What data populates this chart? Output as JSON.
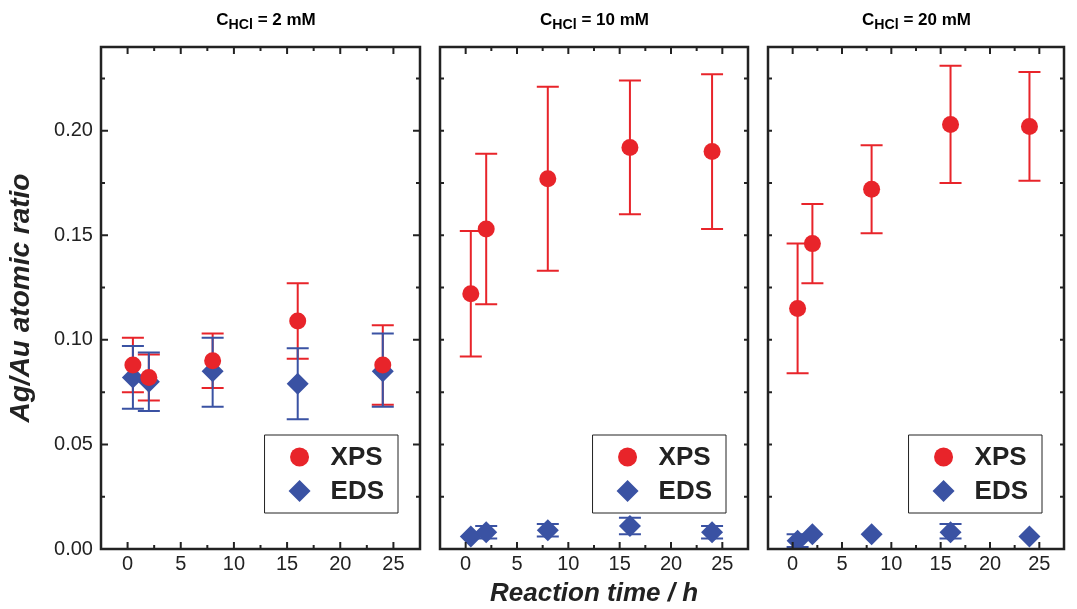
{
  "chart_data": [
    {
      "type": "scatter",
      "title": "C$_{HCl}$ = 2 mM",
      "ylabel": "Ag/Au atomic ratio",
      "xlim": [
        -2.5,
        27.5
      ],
      "ylim": [
        0,
        0.24
      ],
      "xticks": [
        0,
        {
          "value": 2.5,
          "label": null
        },
        5,
        {
          "value": 7.5,
          "label": null
        },
        10,
        {
          "value": 12.5,
          "label": null
        },
        15,
        {
          "value": 17.5,
          "label": null
        },
        20,
        {
          "value": 22.5,
          "label": null
        },
        25
      ],
      "yticks": [
        {
          "value": 0,
          "label": "0.00"
        },
        {
          "value": 0.025,
          "label": null
        },
        {
          "value": 0.05,
          "label": "0.05"
        },
        {
          "value": 0.075,
          "label": null
        },
        {
          "value": 0.1,
          "label": "0.10"
        },
        {
          "value": 0.125,
          "label": null
        },
        {
          "value": 0.15,
          "label": "0.15"
        },
        {
          "value": 0.175,
          "label": null
        },
        {
          "value": 0.2,
          "label": "0.20"
        },
        {
          "value": 0.225,
          "label": null
        }
      ],
      "grid": false,
      "legend": "bottom right",
      "series": [
        {
          "name": "XPS",
          "color": "#e8242a",
          "marker": "circle",
          "x": [
            0.5,
            2,
            8,
            16,
            24
          ],
          "values": [
            0.088,
            0.082,
            0.09,
            0.109,
            0.088
          ],
          "errors": [
            [
              0.075,
              0.101
            ],
            [
              0.071,
              0.093
            ],
            [
              0.077,
              0.103
            ],
            [
              0.091,
              0.127
            ],
            [
              0.069,
              0.107
            ]
          ]
        },
        {
          "name": "EDS",
          "color": "#3a52a3",
          "marker": "diamond",
          "x": [
            0.5,
            2,
            8,
            16,
            24
          ],
          "values": [
            0.082,
            0.08,
            0.085,
            0.079,
            0.085
          ],
          "errors": [
            [
              0.067,
              0.097
            ],
            [
              0.066,
              0.094
            ],
            [
              0.068,
              0.101
            ],
            [
              0.062,
              0.096
            ],
            [
              0.068,
              0.103
            ]
          ]
        }
      ]
    },
    {
      "type": "scatter",
      "title": "C$_{HCl}$ = 10 mM",
      "xlabel": "Reaction time / h",
      "xlim": [
        -2.5,
        27.5
      ],
      "ylim": [
        0,
        0.24
      ],
      "tick_labels": "x",
      "xticks": [
        0,
        {
          "value": 2.5,
          "label": null
        },
        5,
        {
          "value": 7.5,
          "label": null
        },
        10,
        {
          "value": 12.5,
          "label": null
        },
        15,
        {
          "value": 17.5,
          "label": null
        },
        20,
        {
          "value": 22.5,
          "label": null
        },
        25
      ],
      "yticks": [
        {
          "value": 0,
          "label": null
        },
        {
          "value": 0.025,
          "label": null
        },
        {
          "value": 0.05,
          "label": null
        },
        {
          "value": 0.075,
          "label": null
        },
        {
          "value": 0.1,
          "label": null
        },
        {
          "value": 0.125,
          "label": null
        },
        {
          "value": 0.15,
          "label": null
        },
        {
          "value": 0.175,
          "label": null
        },
        {
          "value": 0.2,
          "label": null
        },
        {
          "value": 0.225,
          "label": null
        }
      ],
      "grid": false,
      "legend": "bottom right",
      "series": [
        {
          "name": "XPS",
          "color": "#e8242a",
          "marker": "circle",
          "x": [
            0.5,
            2,
            8,
            16,
            24
          ],
          "values": [
            0.122,
            0.153,
            0.177,
            0.192,
            0.19
          ],
          "errors": [
            [
              0.092,
              0.152
            ],
            [
              0.117,
              0.189
            ],
            [
              0.133,
              0.221
            ],
            [
              0.16,
              0.224
            ],
            [
              0.153,
              0.227
            ]
          ]
        },
        {
          "name": "EDS",
          "color": "#3a52a3",
          "marker": "diamond",
          "x": [
            0.5,
            2,
            8,
            16,
            24
          ],
          "values": [
            0.006,
            0.008,
            0.009,
            0.011,
            0.008
          ],
          "errors": [
            null,
            [
              0.005,
              0.011
            ],
            [
              0.006,
              0.012
            ],
            [
              0.007,
              0.015
            ],
            [
              0.005,
              0.011
            ]
          ]
        }
      ]
    },
    {
      "type": "scatter",
      "title": "C$_{HCl}$ = 20 mM",
      "xlim": [
        -2.5,
        27.5
      ],
      "ylim": [
        0,
        0.24
      ],
      "tick_labels": "x",
      "xticks": [
        0,
        {
          "value": 2.5,
          "label": null
        },
        5,
        {
          "value": 7.5,
          "label": null
        },
        10,
        {
          "value": 12.5,
          "label": null
        },
        15,
        {
          "value": 17.5,
          "label": null
        },
        20,
        {
          "value": 22.5,
          "label": null
        },
        25
      ],
      "yticks": [
        {
          "value": 0,
          "label": null
        },
        {
          "value": 0.025,
          "label": null
        },
        {
          "value": 0.05,
          "label": null
        },
        {
          "value": 0.075,
          "label": null
        },
        {
          "value": 0.1,
          "label": null
        },
        {
          "value": 0.125,
          "label": null
        },
        {
          "value": 0.15,
          "label": null
        },
        {
          "value": 0.175,
          "label": null
        },
        {
          "value": 0.2,
          "label": null
        },
        {
          "value": 0.225,
          "label": null
        }
      ],
      "grid": false,
      "legend": "bottom right",
      "series": [
        {
          "name": "XPS",
          "color": "#e8242a",
          "marker": "circle",
          "x": [
            0.5,
            2,
            8,
            16,
            24
          ],
          "values": [
            0.115,
            0.146,
            0.172,
            0.203,
            0.202
          ],
          "errors": [
            [
              0.084,
              0.146
            ],
            [
              0.127,
              0.165
            ],
            [
              0.151,
              0.193
            ],
            [
              0.175,
              0.231
            ],
            [
              0.176,
              0.228
            ]
          ]
        },
        {
          "name": "EDS",
          "color": "#3a52a3",
          "marker": "diamond",
          "x": [
            0.5,
            2,
            8,
            16,
            24
          ],
          "values": [
            0.004,
            0.007,
            0.007,
            0.008,
            0.006
          ],
          "errors": [
            [
              0.001,
              0.007
            ],
            null,
            null,
            [
              0.005,
              0.012
            ],
            null
          ]
        }
      ]
    }
  ]
}
